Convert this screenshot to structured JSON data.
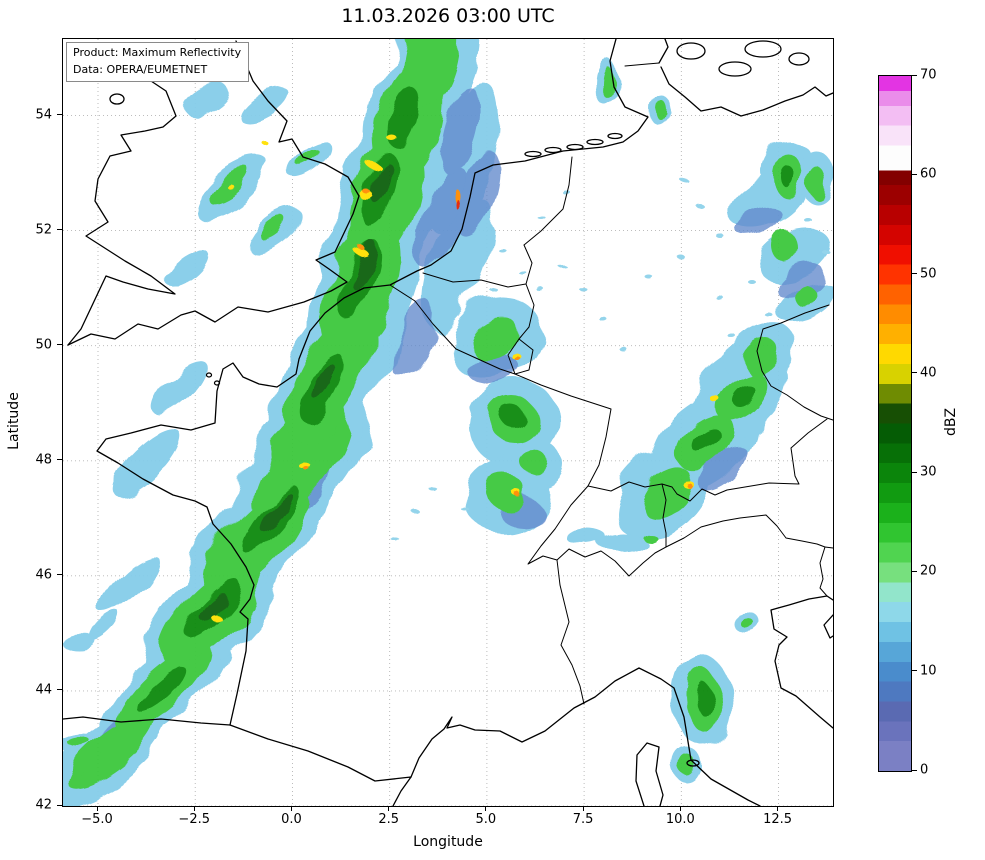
{
  "title": "11.03.2026 03:00 UTC",
  "info_box": {
    "line1": "Product: Maximum Reflectivity",
    "line2": "Data: OPERA/EUMETNET"
  },
  "axes": {
    "x": {
      "label": "Longitude",
      "range": [
        -5.9,
        13.9
      ],
      "ticks": [
        {
          "v": -5,
          "label": "−5.0"
        },
        {
          "v": -2.5,
          "label": "−2.5"
        },
        {
          "v": 0,
          "label": "0.0"
        },
        {
          "v": 2.5,
          "label": "2.5"
        },
        {
          "v": 5,
          "label": "5.0"
        },
        {
          "v": 7.5,
          "label": "7.5"
        },
        {
          "v": 10,
          "label": "10.0"
        },
        {
          "v": 12.5,
          "label": "12.5"
        }
      ]
    },
    "y": {
      "label": "Latitude",
      "range": [
        42,
        55.33
      ],
      "ticks": [
        {
          "v": 54,
          "label": "54"
        },
        {
          "v": 52,
          "label": "52"
        },
        {
          "v": 50,
          "label": "50"
        },
        {
          "v": 48,
          "label": "48"
        },
        {
          "v": 46,
          "label": "46"
        },
        {
          "v": 44,
          "label": "44"
        },
        {
          "v": 42,
          "label": "42"
        }
      ]
    }
  },
  "colorbar": {
    "label": "dBZ",
    "range": [
      0,
      70
    ],
    "ticks": [
      {
        "v": 70,
        "label": "70"
      },
      {
        "v": 60,
        "label": "60"
      },
      {
        "v": 50,
        "label": "50"
      },
      {
        "v": 40,
        "label": "40"
      },
      {
        "v": 30,
        "label": "30"
      },
      {
        "v": 20,
        "label": "20"
      },
      {
        "v": 10,
        "label": "10"
      },
      {
        "v": 0,
        "label": "0"
      }
    ],
    "stops": [
      {
        "value": 0,
        "color": "#7b80c4"
      },
      {
        "value": 3,
        "color": "#6a73bc"
      },
      {
        "value": 5,
        "color": "#5a6ab2"
      },
      {
        "value": 7,
        "color": "#4e79c0"
      },
      {
        "value": 9,
        "color": "#4a8ccc"
      },
      {
        "value": 11,
        "color": "#57a6d8"
      },
      {
        "value": 13,
        "color": "#6fc2e4"
      },
      {
        "value": 15,
        "color": "#8ed8e9"
      },
      {
        "value": 17,
        "color": "#92e5cb"
      },
      {
        "value": 19,
        "color": "#77e07e"
      },
      {
        "value": 21,
        "color": "#50d450"
      },
      {
        "value": 23,
        "color": "#30c530"
      },
      {
        "value": 25,
        "color": "#1bb11b"
      },
      {
        "value": 27,
        "color": "#119b11"
      },
      {
        "value": 29,
        "color": "#0b850b"
      },
      {
        "value": 31,
        "color": "#077007"
      },
      {
        "value": 33,
        "color": "#055c05"
      },
      {
        "value": 35,
        "color": "#174f04"
      },
      {
        "value": 37,
        "color": "#6f8c02"
      },
      {
        "value": 39,
        "color": "#d8d200"
      },
      {
        "value": 41,
        "color": "#ffd900"
      },
      {
        "value": 43,
        "color": "#ffb000"
      },
      {
        "value": 45,
        "color": "#ff8c00"
      },
      {
        "value": 47,
        "color": "#ff6200"
      },
      {
        "value": 49,
        "color": "#ff3300"
      },
      {
        "value": 51,
        "color": "#f00f00"
      },
      {
        "value": 53,
        "color": "#d40400"
      },
      {
        "value": 55,
        "color": "#b80000"
      },
      {
        "value": 57,
        "color": "#9c0000"
      },
      {
        "value": 59,
        "color": "#830000"
      },
      {
        "value": 60.5,
        "color": "#fdfdfd"
      },
      {
        "value": 63,
        "color": "#f9e3f9"
      },
      {
        "value": 65,
        "color": "#f3bef3"
      },
      {
        "value": 67,
        "color": "#ea8cea"
      },
      {
        "value": 68.5,
        "color": "#e334e3"
      }
    ]
  },
  "map": {
    "description": "Radar maximum reflectivity composite over western and central Europe",
    "grid_color": "#b4b4b4",
    "coast_color": "#000000"
  }
}
